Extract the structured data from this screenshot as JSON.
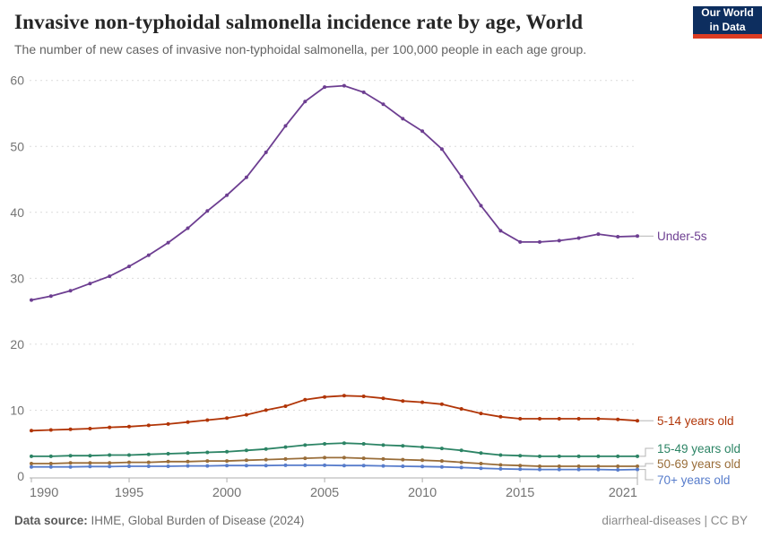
{
  "header": {
    "title": "Invasive non-typhoidal salmonella incidence rate by age, World",
    "subtitle": "The number of new cases of invasive non-typhoidal salmonella, per 100,000 people in each age group."
  },
  "logo": {
    "line1": "Our World",
    "line2": "in Data",
    "bg_color": "#0d2e5f",
    "accent_color": "#dc3c22"
  },
  "chart_data": {
    "type": "line",
    "title": "Invasive non-typhoidal salmonella incidence rate by age, World",
    "xlabel": "",
    "ylabel": "",
    "grid": "horizontal-dashed",
    "legend_position": "right-edge-labels",
    "x_range": [
      1990,
      2021
    ],
    "ylim": [
      0,
      60
    ],
    "y_ticks": [
      0,
      10,
      20,
      30,
      40,
      50,
      60
    ],
    "x_ticks": [
      1990,
      1995,
      2000,
      2005,
      2010,
      2015,
      2021
    ],
    "years": [
      1990,
      1991,
      1992,
      1993,
      1994,
      1995,
      1996,
      1997,
      1998,
      1999,
      2000,
      2001,
      2002,
      2003,
      2004,
      2005,
      2006,
      2007,
      2008,
      2009,
      2010,
      2011,
      2012,
      2013,
      2014,
      2015,
      2016,
      2017,
      2018,
      2019,
      2020,
      2021
    ],
    "series": [
      {
        "name": "Under-5s",
        "color": "#6d3e91",
        "label_y": 263,
        "values": [
          26.7,
          27.3,
          28.1,
          29.2,
          30.3,
          31.8,
          33.5,
          35.4,
          37.6,
          40.2,
          42.6,
          45.3,
          49.1,
          53.1,
          56.8,
          59.0,
          59.2,
          58.2,
          56.4,
          54.2,
          52.3,
          49.6,
          45.4,
          41.0,
          37.2,
          35.5,
          35.5,
          35.7,
          36.1,
          36.7,
          36.3,
          36.4
        ]
      },
      {
        "name": "5-14 years old",
        "color": "#b13507",
        "label_y": 469,
        "values": [
          6.9,
          7.0,
          7.1,
          7.2,
          7.4,
          7.5,
          7.7,
          7.9,
          8.2,
          8.5,
          8.8,
          9.3,
          10.0,
          10.6,
          11.6,
          12.0,
          12.2,
          12.1,
          11.8,
          11.4,
          11.2,
          10.9,
          10.2,
          9.5,
          9.0,
          8.7,
          8.7,
          8.7,
          8.7,
          8.7,
          8.6,
          8.4
        ]
      },
      {
        "name": "15-49 years old",
        "color": "#2c8465",
        "label_y": 500,
        "values": [
          3.0,
          3.0,
          3.1,
          3.1,
          3.2,
          3.2,
          3.3,
          3.4,
          3.5,
          3.6,
          3.7,
          3.9,
          4.1,
          4.4,
          4.7,
          4.9,
          5.0,
          4.9,
          4.7,
          4.6,
          4.4,
          4.2,
          3.9,
          3.5,
          3.2,
          3.1,
          3.0,
          3.0,
          3.0,
          3.0,
          3.0,
          3.0
        ]
      },
      {
        "name": "50-69 years old",
        "color": "#996d39",
        "label_y": 517,
        "values": [
          1.9,
          1.9,
          2.0,
          2.0,
          2.0,
          2.1,
          2.1,
          2.2,
          2.2,
          2.3,
          2.3,
          2.4,
          2.5,
          2.6,
          2.7,
          2.8,
          2.8,
          2.7,
          2.6,
          2.5,
          2.4,
          2.3,
          2.1,
          1.9,
          1.7,
          1.6,
          1.5,
          1.5,
          1.5,
          1.5,
          1.5,
          1.5
        ]
      },
      {
        "name": "70+ years old",
        "color": "#577ccb",
        "label_y": 535,
        "values": [
          1.4,
          1.4,
          1.4,
          1.45,
          1.45,
          1.5,
          1.5,
          1.5,
          1.55,
          1.55,
          1.6,
          1.6,
          1.6,
          1.65,
          1.65,
          1.65,
          1.6,
          1.6,
          1.55,
          1.5,
          1.45,
          1.4,
          1.3,
          1.2,
          1.1,
          1.05,
          1.0,
          1.0,
          1.0,
          1.0,
          0.95,
          1.0
        ]
      }
    ]
  },
  "footer": {
    "source_label": "Data source:",
    "source_value": "IHME, Global Burden of Disease (2024)",
    "link": "diarrheal-diseases",
    "separator": " | ",
    "license": "CC BY"
  }
}
